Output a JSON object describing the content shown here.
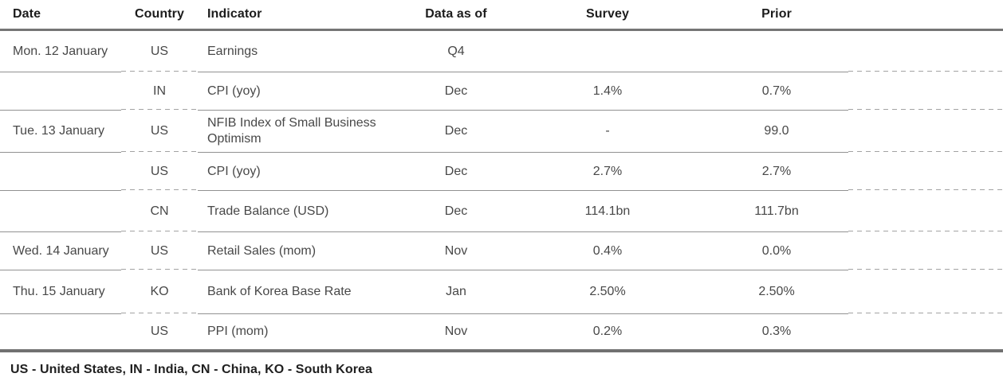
{
  "table": {
    "columns": {
      "date": "Date",
      "country": "Country",
      "indicator": "Indicator",
      "data_as_of": "Data as of",
      "survey": "Survey",
      "prior": "Prior"
    },
    "rows": [
      {
        "date": "Mon. 12 January",
        "country": "US",
        "indicator": "Earnings",
        "data_as_of": "Q4",
        "survey": "",
        "prior": ""
      },
      {
        "date": "",
        "country": "IN",
        "indicator": "CPI (yoy)",
        "data_as_of": "Dec",
        "survey": "1.4%",
        "prior": "0.7%"
      },
      {
        "date": "Tue. 13 January",
        "country": "US",
        "indicator": "NFIB Index of Small Business Optimism",
        "data_as_of": "Dec",
        "survey": "-",
        "prior": "99.0"
      },
      {
        "date": "",
        "country": "US",
        "indicator": "CPI (yoy)",
        "data_as_of": "Dec",
        "survey": "2.7%",
        "prior": "2.7%"
      },
      {
        "date": "",
        "country": "CN",
        "indicator": "Trade Balance (USD)",
        "data_as_of": "Dec",
        "survey": "114.1bn",
        "prior": "111.7bn"
      },
      {
        "date": "Wed. 14 January",
        "country": "US",
        "indicator": "Retail Sales (mom)",
        "data_as_of": "Nov",
        "survey": "0.4%",
        "prior": "0.0%"
      },
      {
        "date": "Thu. 15 January",
        "country": "KO",
        "indicator": "Bank of Korea Base Rate",
        "data_as_of": "Jan",
        "survey": "2.50%",
        "prior": "2.50%"
      },
      {
        "date": "",
        "country": "US",
        "indicator": "PPI (mom)",
        "data_as_of": "Nov",
        "survey": "0.2%",
        "prior": "0.3%"
      }
    ],
    "footnote": "US - United States, IN - India, CN - China, KO - South Korea"
  },
  "colors": {
    "background": "#ffffff",
    "header_text": "#1c1c1c",
    "body_text": "#484848",
    "rule_heavy": "#757575",
    "rule_light_solid": "#919191",
    "rule_light_dashed": "#a3a3a3"
  }
}
